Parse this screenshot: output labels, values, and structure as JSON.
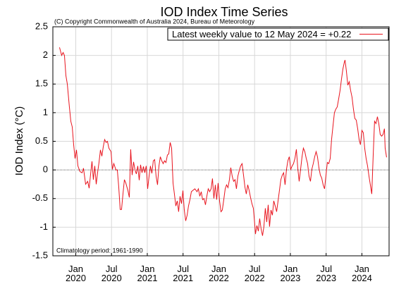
{
  "chart_data": {
    "type": "line",
    "title": "IOD Index Time Series",
    "subtitle": "(C) Copyright Commonwealth of Australia 2024, Bureau of Meteorology",
    "ylabel": "IOD Index (°C)",
    "annotation": "Climatology period: 1961-1990",
    "xlim": [
      2019.68,
      2024.38
    ],
    "ylim": [
      -1.5,
      2.5
    ],
    "xticks": [
      {
        "value": 2020.0,
        "label": "Jan 2020"
      },
      {
        "value": 2020.5,
        "label": "Jul 2020"
      },
      {
        "value": 2021.0,
        "label": "Jan 2021"
      },
      {
        "value": 2021.5,
        "label": "Jul 2021"
      },
      {
        "value": 2022.0,
        "label": "Jan 2022"
      },
      {
        "value": 2022.5,
        "label": "Jul 2022"
      },
      {
        "value": 2023.0,
        "label": "Jan 2023"
      },
      {
        "value": 2023.5,
        "label": "Jul 2023"
      },
      {
        "value": 2024.0,
        "label": "Jan 2024"
      }
    ],
    "yticks": [
      2.5,
      2,
      1.5,
      1,
      0.5,
      0,
      -0.5,
      -1,
      -1.5
    ],
    "grid": true,
    "legend": "upper right",
    "x": [
      2019.773,
      2019.803,
      2019.823,
      2019.842,
      2019.862,
      2019.882,
      2019.911,
      2019.931,
      2019.951,
      2019.97,
      2019.99,
      2020.01,
      2020.03,
      2020.059,
      2020.089,
      2020.108,
      2020.138,
      2020.167,
      2020.187,
      2020.207,
      2020.227,
      2020.246,
      2020.266,
      2020.286,
      2020.305,
      2020.325,
      2020.345,
      2020.365,
      2020.384,
      2020.404,
      2020.424,
      2020.443,
      2020.463,
      2020.493,
      2020.512,
      2020.532,
      2020.562,
      2020.581,
      2020.601,
      2020.621,
      2020.64,
      2020.66,
      2020.68,
      2020.7,
      2020.729,
      2020.749,
      2020.768,
      2020.788,
      2020.808,
      2020.828,
      2020.847,
      2020.867,
      2020.887,
      2020.906,
      2020.926,
      2020.946,
      2020.965,
      2020.985,
      2021.005,
      2021.025,
      2021.044,
      2021.064,
      2021.084,
      2021.103,
      2021.123,
      2021.143,
      2021.163,
      2021.182,
      2021.202,
      2021.222,
      2021.241,
      2021.261,
      2021.281,
      2021.3,
      2021.32,
      2021.34,
      2021.36,
      2021.379,
      2021.399,
      2021.419,
      2021.438,
      2021.458,
      2021.478,
      2021.498,
      2021.517,
      2021.537,
      2021.557,
      2021.576,
      2021.596,
      2021.616,
      2021.635,
      2021.665,
      2021.695,
      2021.714,
      2021.734,
      2021.754,
      2021.773,
      2021.793,
      2021.813,
      2021.832,
      2021.852,
      2021.872,
      2021.892,
      2021.911,
      2021.931,
      2021.951,
      2021.97,
      2021.99,
      2022.01,
      2022.03,
      2022.049,
      2022.069,
      2022.089,
      2022.108,
      2022.128,
      2022.148,
      2022.167,
      2022.187,
      2022.207,
      2022.227,
      2022.246,
      2022.266,
      2022.286,
      2022.305,
      2022.325,
      2022.345,
      2022.365,
      2022.384,
      2022.404,
      2022.424,
      2022.443,
      2022.463,
      2022.483,
      2022.502,
      2022.512,
      2022.532,
      2022.552,
      2022.571,
      2022.591,
      2022.611,
      2022.63,
      2022.65,
      2022.67,
      2022.69,
      2022.709,
      2022.729,
      2022.749,
      2022.768,
      2022.788,
      2022.808,
      2022.828,
      2022.847,
      2022.867,
      2022.887,
      2022.906,
      2022.926,
      2022.946,
      2022.965,
      2022.985,
      2023.005,
      2023.025,
      2023.044,
      2023.064,
      2023.084,
      2023.103,
      2023.123,
      2023.143,
      2023.163,
      2023.182,
      2023.202,
      2023.222,
      2023.241,
      2023.261,
      2023.281,
      2023.3,
      2023.32,
      2023.34,
      2023.36,
      2023.379,
      2023.399,
      2023.419,
      2023.438,
      2023.458,
      2023.478,
      2023.498,
      2023.517,
      2023.537,
      2023.557,
      2023.576,
      2023.596,
      2023.616,
      2023.635,
      2023.655,
      2023.675,
      2023.695,
      2023.714,
      2023.734,
      2023.754,
      2023.764,
      2023.783,
      2023.803,
      2023.823,
      2023.842,
      2023.862,
      2023.882,
      2023.901,
      2023.921,
      2023.941,
      2023.961,
      2023.98,
      2024.0,
      2024.02,
      2024.039,
      2024.059,
      2024.079,
      2024.099,
      2024.118,
      2024.138,
      2024.158,
      2024.177,
      2024.197,
      2024.217,
      2024.236,
      2024.256,
      2024.276,
      2024.296,
      2024.315,
      2024.325,
      2024.345
    ],
    "series": [
      {
        "name": "Latest weekly value to 12 May 2024 = +0.22",
        "color": "#e8141e",
        "values": [
          2.14,
          2.0,
          2.05,
          2.0,
          1.65,
          1.5,
          1.1,
          0.85,
          0.75,
          0.45,
          0.2,
          0.35,
          0.07,
          -0.03,
          -0.05,
          0.03,
          -0.25,
          -0.2,
          -0.32,
          -0.08,
          0.15,
          -0.17,
          0.07,
          -0.25,
          -0.05,
          0.13,
          0.35,
          0.24,
          0.4,
          0.53,
          0.48,
          0.5,
          0.38,
          0.32,
          0.01,
          0.11,
          0.0,
          0.0,
          -0.3,
          -0.69,
          -0.69,
          -0.42,
          -0.17,
          -0.23,
          -0.36,
          -0.48,
          0.36,
          -0.09,
          0.14,
          0.0,
          -0.07,
          0.07,
          -0.18,
          0.09,
          -0.05,
          0.06,
          -0.05,
          0.07,
          -0.33,
          -0.11,
          0.07,
          -0.06,
          0.16,
          0.18,
          -0.11,
          -0.26,
          0.07,
          0.23,
          0.16,
          0.11,
          0.16,
          0.13,
          0.26,
          0.28,
          0.48,
          0.38,
          -0.23,
          -0.42,
          -0.63,
          -0.54,
          -0.73,
          -0.46,
          -0.59,
          -0.36,
          -0.7,
          -0.89,
          -0.79,
          -0.63,
          -0.52,
          -0.38,
          -0.36,
          -0.33,
          -0.38,
          -0.33,
          -0.46,
          -0.38,
          -0.52,
          -0.5,
          -0.61,
          -0.46,
          -0.33,
          -0.38,
          -0.33,
          -0.15,
          -0.5,
          -0.26,
          -0.52,
          -0.23,
          -0.54,
          -0.73,
          -0.7,
          -0.52,
          -0.33,
          -0.26,
          -0.31,
          -0.17,
          0.04,
          -0.11,
          -0.2,
          -0.17,
          -0.33,
          -0.11,
          -0.01,
          0.07,
          0.11,
          -0.09,
          -0.3,
          -0.42,
          -0.26,
          -0.36,
          -0.48,
          -0.59,
          -0.67,
          -0.95,
          -1.12,
          -0.97,
          -1.07,
          -0.85,
          -1.03,
          -1.15,
          -0.99,
          -0.67,
          -0.91,
          -0.61,
          -0.99,
          -0.7,
          -0.79,
          -0.54,
          -0.63,
          -0.73,
          -0.54,
          -0.36,
          -0.17,
          -0.09,
          -0.05,
          -0.26,
          0.01,
          0.16,
          0.23,
          0.01,
          0.07,
          0.11,
          0.2,
          0.36,
          0.04,
          -0.2,
          0.01,
          0.23,
          0.38,
          0.32,
          0.2,
          0.11,
          -0.11,
          -0.2,
          0.01,
          0.11,
          0.23,
          0.32,
          0.23,
          0.04,
          -0.09,
          -0.14,
          -0.26,
          -0.33,
          -0.09,
          0.13,
          0.11,
          0.2,
          0.53,
          0.77,
          1.0,
          1.06,
          1.1,
          1.24,
          1.39,
          1.58,
          1.76,
          1.88,
          1.92,
          1.73,
          1.48,
          1.54,
          1.39,
          1.27,
          1.06,
          0.9,
          0.87,
          0.72,
          0.53,
          0.44,
          0.69,
          0.65,
          0.38,
          0.2,
          0.07,
          -0.11,
          -0.26,
          -0.42,
          0.26,
          0.85,
          0.81,
          0.93,
          0.81,
          0.62,
          0.59,
          0.62,
          0.72,
          0.38,
          0.22
        ]
      }
    ]
  }
}
